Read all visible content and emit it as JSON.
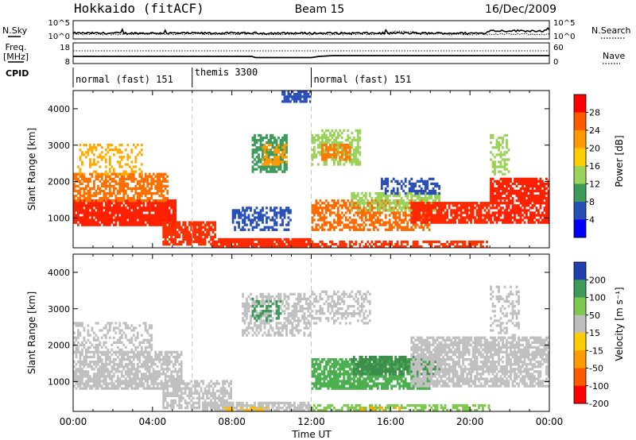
{
  "header": {
    "station": "Hokkaido (fitACF)",
    "beam": "Beam 15",
    "date": "16/Dec/2009"
  },
  "strip_labels": {
    "nsky": "N.Sky",
    "freq": "Freq.",
    "freq_unit": "[MHz]",
    "cpid": "CPID",
    "nsearch": "N.Search",
    "nave": "Nave",
    "noise_ticks": [
      "10^5",
      "10^0"
    ],
    "freq_ticks": [
      "18",
      "8"
    ],
    "nave_ticks": [
      "60",
      "0"
    ]
  },
  "cpid_segments": [
    {
      "label": "normal (fast) 151",
      "start_h": 0,
      "end_h": 6
    },
    {
      "label": "themis 3300",
      "start_h": 6,
      "end_h": 12
    },
    {
      "label": "normal (fast) 151",
      "start_h": 12,
      "end_h": 24
    }
  ],
  "chart_data": [
    {
      "type": "heatmap",
      "panel": "power",
      "ylabel": "Slant Range [km]",
      "xlabel": "",
      "x_range_h": [
        0,
        24
      ],
      "ylim": [
        180,
        4500
      ],
      "yticks": [
        "1000",
        "2000",
        "3000",
        "4000"
      ],
      "colorbar": {
        "label": "Power [dB]",
        "ticks": [
          "28",
          "24",
          "20",
          "16",
          "12",
          "8",
          "4"
        ],
        "colors": [
          "#ff0000",
          "#ff5a00",
          "#ff9900",
          "#ffcc00",
          "#9bd25a",
          "#3c9b5a",
          "#2850b4",
          "#0000ff"
        ]
      },
      "regions": [
        {
          "h0": 0.0,
          "h1": 5.2,
          "r0": 800,
          "r1": 1500,
          "c": "#ff2000",
          "d": 0.9
        },
        {
          "h0": 0.0,
          "h1": 4.8,
          "r0": 1500,
          "r1": 2200,
          "c": "#ff7000",
          "d": 0.65
        },
        {
          "h0": 0.3,
          "h1": 3.5,
          "r0": 2200,
          "r1": 3000,
          "c": "#ffaa00",
          "d": 0.35
        },
        {
          "h0": 4.5,
          "h1": 7.2,
          "r0": 300,
          "r1": 900,
          "c": "#ff3000",
          "d": 0.85
        },
        {
          "h0": 7.0,
          "h1": 12.0,
          "r0": 180,
          "r1": 420,
          "c": "#ff2a00",
          "d": 0.9
        },
        {
          "h0": 12.0,
          "h1": 21.0,
          "r0": 180,
          "r1": 320,
          "c": "#ff3300",
          "d": 0.6
        },
        {
          "h0": 8.0,
          "h1": 11.0,
          "r0": 700,
          "r1": 1300,
          "c": "#2a50b8",
          "d": 0.55
        },
        {
          "h0": 9.0,
          "h1": 10.8,
          "r0": 2300,
          "r1": 3300,
          "c": "#3c9b5a",
          "d": 0.65
        },
        {
          "h0": 9.5,
          "h1": 10.8,
          "r0": 2500,
          "r1": 3000,
          "c": "#ff9900",
          "d": 0.45
        },
        {
          "h0": 12.0,
          "h1": 14.5,
          "r0": 2500,
          "r1": 3400,
          "c": "#9bd25a",
          "d": 0.55
        },
        {
          "h0": 12.5,
          "h1": 14.0,
          "r0": 2600,
          "r1": 3000,
          "c": "#ff7a00",
          "d": 0.6
        },
        {
          "h0": 12.0,
          "h1": 18.0,
          "r0": 700,
          "r1": 1500,
          "c": "#ff6a00",
          "d": 0.6
        },
        {
          "h0": 14.0,
          "h1": 18.5,
          "r0": 1200,
          "r1": 1700,
          "c": "#9bd25a",
          "d": 0.6
        },
        {
          "h0": 17.0,
          "h1": 21.0,
          "r0": 900,
          "r1": 1400,
          "c": "#ff2800",
          "d": 0.85
        },
        {
          "h0": 21.0,
          "h1": 24.0,
          "r0": 900,
          "r1": 2100,
          "c": "#ff2000",
          "d": 0.8
        },
        {
          "h0": 21.0,
          "h1": 22.0,
          "r0": 2200,
          "r1": 3300,
          "c": "#9bd25a",
          "d": 0.35
        },
        {
          "h0": 15.5,
          "h1": 18.5,
          "r0": 1700,
          "r1": 2100,
          "c": "#2a50b8",
          "d": 0.45
        },
        {
          "h0": 10.5,
          "h1": 12.0,
          "r0": 4200,
          "r1": 4500,
          "c": "#2a50b8",
          "d": 0.7
        }
      ]
    },
    {
      "type": "heatmap",
      "panel": "velocity",
      "ylabel": "Slant Range [km]",
      "xlabel": "Time UT",
      "x_range_h": [
        0,
        24
      ],
      "ylim": [
        180,
        4500
      ],
      "xticks": [
        "00:00",
        "04:00",
        "08:00",
        "12:00",
        "16:00",
        "20:00",
        "00:00"
      ],
      "yticks": [
        "1000",
        "2000",
        "3000",
        "4000"
      ],
      "colorbar": {
        "label": "Velocity [m s⁻¹]",
        "ticks": [
          "200",
          "100",
          "50",
          "15",
          "-15",
          "-50",
          "-100",
          "-200"
        ],
        "colors": [
          "#2040b0",
          "#3c9b5a",
          "#7fc850",
          "#bebebe",
          "#ffcc00",
          "#ff9900",
          "#ff5a00",
          "#ff0000"
        ]
      },
      "regions": [
        {
          "h0": 0.0,
          "h1": 5.5,
          "r0": 800,
          "r1": 1800,
          "c": "#c0c0c0",
          "d": 0.75
        },
        {
          "h0": 0.0,
          "h1": 4.0,
          "r0": 1800,
          "r1": 2600,
          "c": "#c0c0c0",
          "d": 0.4
        },
        {
          "h0": 4.5,
          "h1": 8.0,
          "r0": 300,
          "r1": 1000,
          "c": "#c0c0c0",
          "d": 0.6
        },
        {
          "h0": 6.5,
          "h1": 12.0,
          "r0": 180,
          "r1": 400,
          "c": "#c0c0c0",
          "d": 0.8
        },
        {
          "h0": 8.5,
          "h1": 12.0,
          "r0": 2300,
          "r1": 3400,
          "c": "#c0c0c0",
          "d": 0.55
        },
        {
          "h0": 9.0,
          "h1": 10.5,
          "r0": 2700,
          "r1": 3300,
          "c": "#3c9b5a",
          "d": 0.35
        },
        {
          "h0": 12.0,
          "h1": 18.0,
          "r0": 800,
          "r1": 1600,
          "c": "#4caf50",
          "d": 0.75
        },
        {
          "h0": 14.0,
          "h1": 18.5,
          "r0": 1200,
          "r1": 1700,
          "c": "#3c8f4a",
          "d": 0.7
        },
        {
          "h0": 12.0,
          "h1": 21.0,
          "r0": 180,
          "r1": 350,
          "c": "#7fc850",
          "d": 0.55
        },
        {
          "h0": 12.0,
          "h1": 15.0,
          "r0": 2600,
          "r1": 3500,
          "c": "#c0c0c0",
          "d": 0.4
        },
        {
          "h0": 17.0,
          "h1": 24.0,
          "r0": 900,
          "r1": 2200,
          "c": "#c0c0c0",
          "d": 0.75
        },
        {
          "h0": 7.5,
          "h1": 10.0,
          "r0": 180,
          "r1": 300,
          "c": "#ffbb00",
          "d": 0.5
        },
        {
          "h0": 14.5,
          "h1": 16.5,
          "r0": 180,
          "r1": 300,
          "c": "#ffaa00",
          "d": 0.35
        },
        {
          "h0": 21.0,
          "h1": 22.5,
          "r0": 2200,
          "r1": 3600,
          "c": "#c0c0c0",
          "d": 0.35
        }
      ]
    }
  ]
}
